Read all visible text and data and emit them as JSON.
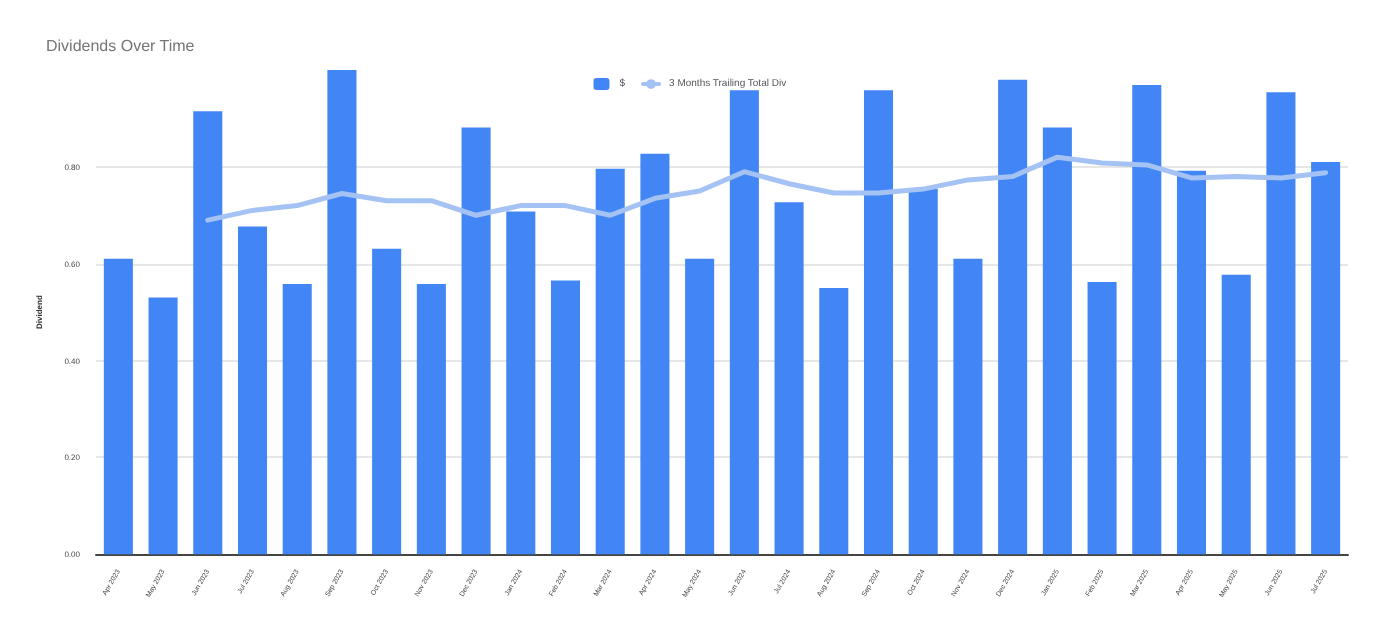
{
  "chart_data": {
    "type": "bar",
    "title": "Dividends Over Time",
    "ylabel": "Dividend",
    "categories": [
      "Apr 2023",
      "May 2023",
      "Jun 2023",
      "Jul 2023",
      "Aug 2023",
      "Sep 2023",
      "Oct 2023",
      "Nov 2023",
      "Dec 2023",
      "Jan 2024",
      "Feb 2024",
      "Mar 2024",
      "Apr 2024",
      "May 2024",
      "Jun 2024",
      "Jul 2024",
      "Aug 2024",
      "Sep 2024",
      "Oct 2024",
      "Nov 2024",
      "Dec 2024",
      "Jan 2025",
      "Feb 2025",
      "Mar 2025",
      "Apr 2025",
      "May 2025",
      "Jun 2025",
      "Jul 2025"
    ],
    "series": [
      {
        "name": "$",
        "color": "#4285f4",
        "values": [
          0.61,
          0.53,
          0.915,
          0.677,
          0.558,
          1.0,
          0.631,
          0.558,
          0.881,
          0.708,
          0.565,
          0.796,
          0.827,
          0.61,
          0.958,
          0.727,
          0.55,
          0.958,
          0.754,
          0.61,
          0.98,
          0.881,
          0.562,
          0.969,
          0.792,
          0.577,
          0.954,
          0.81
        ]
      },
      {
        "name": "3 Months Trailing Total Div",
        "type": "line",
        "color": "#a4c2f4",
        "values": [
          null,
          null,
          0.69,
          0.71,
          0.72,
          0.745,
          0.73,
          0.73,
          0.7,
          0.72,
          0.72,
          0.7,
          0.735,
          0.75,
          0.79,
          0.765,
          0.746,
          0.746,
          0.754,
          0.773,
          0.78,
          0.82,
          0.808,
          0.804,
          0.777,
          0.78,
          0.777,
          0.788
        ]
      }
    ],
    "ylim": [
      0,
      1.0
    ],
    "yticks": [
      {
        "value": 0,
        "label": "0.00"
      },
      {
        "value": 0.2,
        "label": "0.20"
      },
      {
        "value": 0.4,
        "label": "0.40"
      },
      {
        "value": 0.6,
        "label": "0.60"
      },
      {
        "value": 0.8,
        "label": "0.80"
      }
    ],
    "grid": "y",
    "legend": "top",
    "marker": "none",
    "line_style": "solid"
  }
}
